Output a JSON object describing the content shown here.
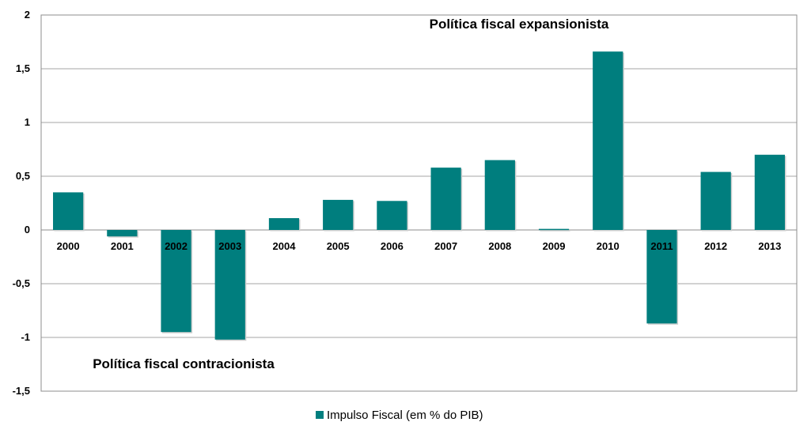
{
  "chart_data": {
    "type": "bar",
    "categories": [
      "2000",
      "2001",
      "2002",
      "2003",
      "2004",
      "2005",
      "2006",
      "2007",
      "2008",
      "2009",
      "2010",
      "2011",
      "2012",
      "2013"
    ],
    "series": [
      {
        "name": "Impulso Fiscal (em % do PIB)",
        "values": [
          0.35,
          -0.06,
          -0.95,
          -1.02,
          0.11,
          0.28,
          0.27,
          0.58,
          0.65,
          0.01,
          1.66,
          -0.87,
          0.54,
          0.7
        ],
        "color": "#007E7E"
      }
    ],
    "ylim": [
      -1.5,
      2
    ],
    "yticks": [
      2,
      1.5,
      1,
      0.5,
      0,
      -0.5,
      -1,
      -1.5
    ],
    "ytick_labels": [
      "2",
      "1,5",
      "1",
      "0,5",
      "0",
      "-0,5",
      "-1",
      "-1,5"
    ],
    "grid": true,
    "legend": "bottom",
    "annotations": [
      {
        "text": "Política fiscal expansionista"
      },
      {
        "text": "Política fiscal contracionista"
      }
    ]
  }
}
